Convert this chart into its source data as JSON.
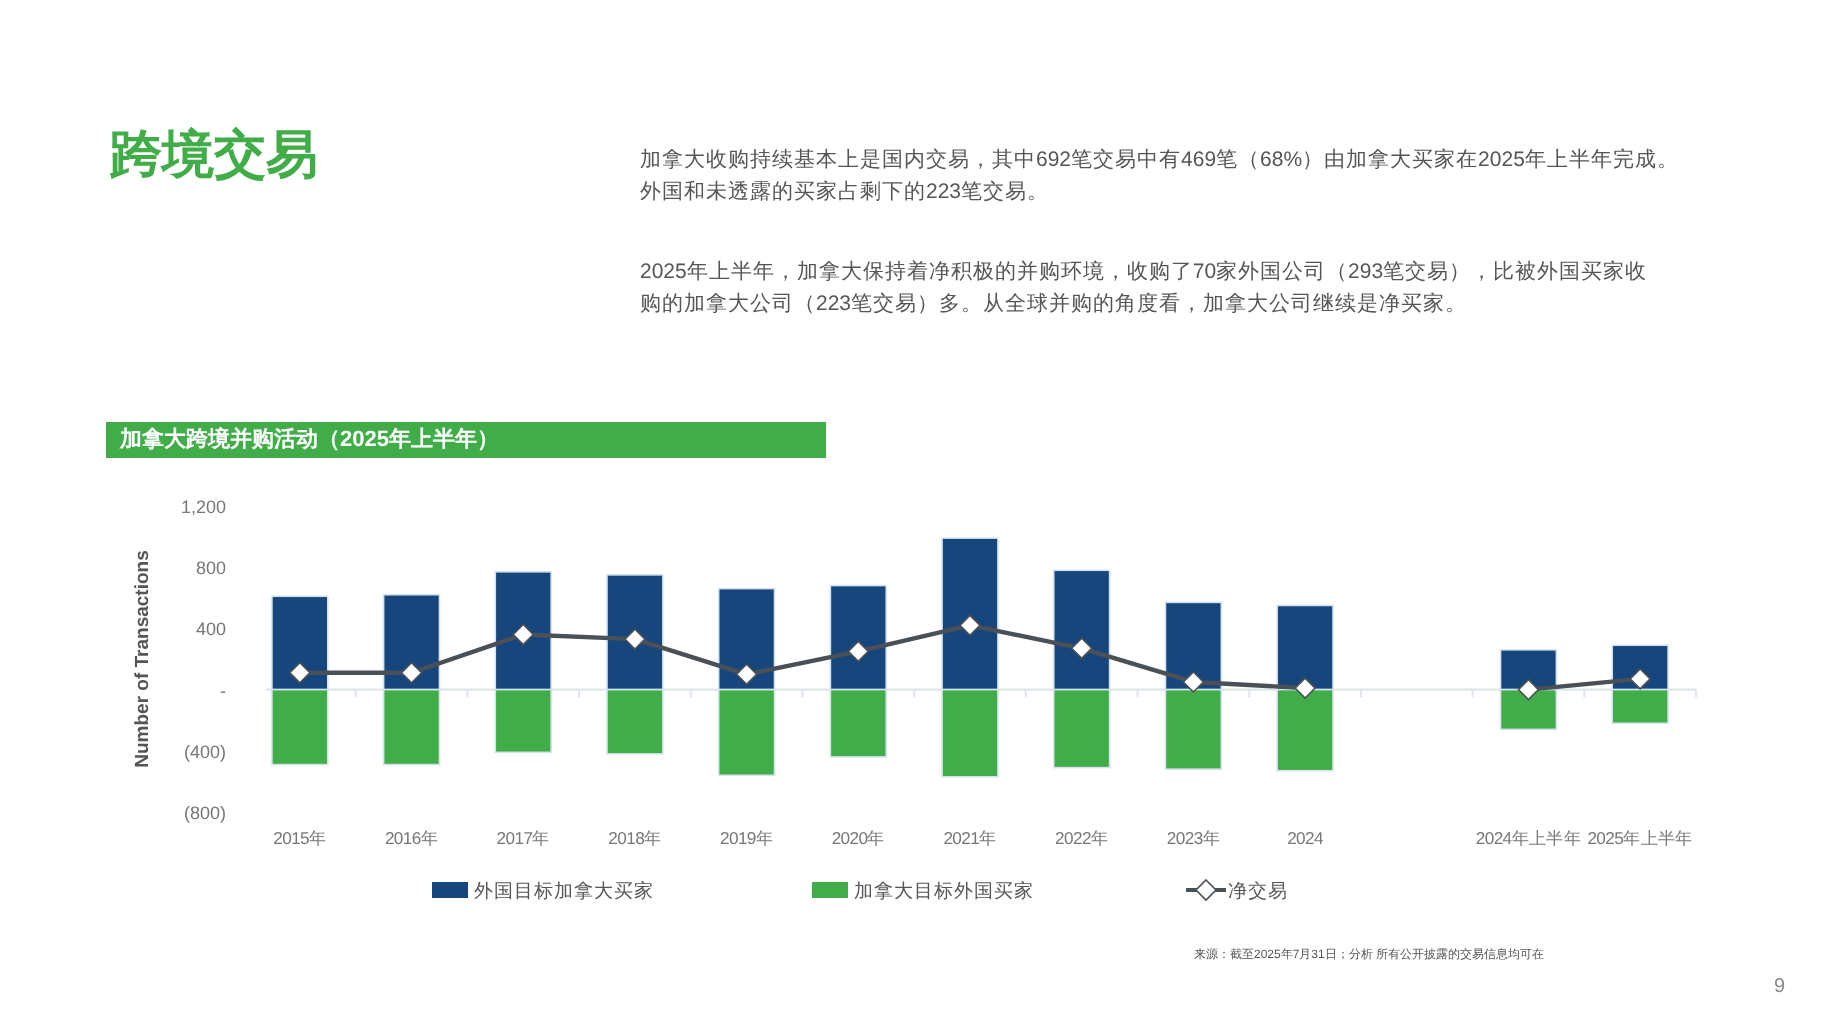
{
  "chart_data": {
    "type": "bar",
    "title": "加拿大跨境并购活动（2025年上半年）",
    "ylabel": "Number of Transactions",
    "stacked": true,
    "categories": [
      "2015年",
      "2016年",
      "2017年",
      "2018年",
      "2019年",
      "2020年",
      "2021年",
      "2022年",
      "2023年",
      "2024",
      null,
      "2024年上半年",
      "2025年上半年"
    ],
    "series": [
      {
        "name": "外国目标加拿大买家",
        "color": "#16467b",
        "values": [
          610,
          620,
          770,
          750,
          660,
          680,
          990,
          780,
          570,
          550,
          null,
          260,
          290
        ]
      },
      {
        "name": "加拿大目标外国买家",
        "color": "#41ad49",
        "values": [
          -490,
          -490,
          -410,
          -420,
          -560,
          -440,
          -570,
          -510,
          -520,
          -530,
          null,
          -260,
          -220
        ]
      },
      {
        "name": "净交易",
        "type": "line",
        "color": "#4a5058",
        "marker": "diamond",
        "values": [
          110,
          110,
          360,
          330,
          100,
          250,
          420,
          270,
          50,
          10,
          null,
          0,
          70
        ]
      }
    ],
    "ylim": [
      -800,
      1200
    ],
    "yticks": [
      {
        "value": -800,
        "label": "(800)"
      },
      {
        "value": -400,
        "label": "(400)"
      },
      {
        "value": 0,
        "label": "-"
      },
      400,
      800,
      {
        "value": 1200,
        "label": "1,200"
      }
    ],
    "legend": "bottom",
    "annotations": [
      "跨境交易",
      "加拿大收购持续基本上是国内交易，其中692笔交易中有469笔（68%）由加拿大买家在2025年上半年完成。外国和未透露的买家占剩下的223笔交易。",
      "2025年上半年，加拿大保持着净积极的并购环境，收购了70家外国公司（293笔交易），比被外国买家收购的加拿大公司（223笔交易）多。从全球并购的角度看，加拿大公司继续是净买家。",
      "来源：截至2025年7月31日；分析 所有公开披露的交易信息均可在",
      "9"
    ]
  }
}
